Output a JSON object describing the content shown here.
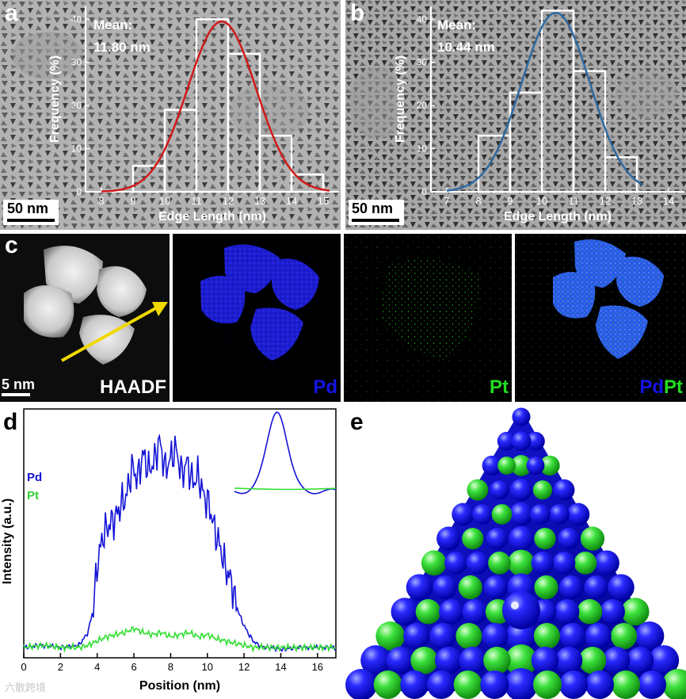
{
  "panels": {
    "a": {
      "label": "a",
      "mean_title": "Mean:",
      "mean_value": "11.80 nm",
      "scale_bar": "50 nm",
      "xlabel": "Edge Length (nm)",
      "ylabel": "Frequency (%)",
      "curve_color": "#d11a1a"
    },
    "b": {
      "label": "b",
      "mean_title": "Mean:",
      "mean_value": "10.44 nm",
      "scale_bar": "50 nm",
      "xlabel": "Edge Length (nm)",
      "ylabel": "Frequency (%)",
      "curve_color": "#2f6aa0"
    },
    "c": {
      "label": "c",
      "scale_bar": "5 nm",
      "haadf": "HAADF",
      "pd": "Pd",
      "pt": "Pt",
      "pdpt_pd": "Pd",
      "pdpt_pt": "Pt",
      "pd_color": "#1414e6",
      "pt_color": "#22dd22"
    },
    "d": {
      "label": "d",
      "xlabel": "Position (nm)",
      "ylabel": "Intensity (a.u.)",
      "legend_pd": "Pd",
      "legend_pt": "Pt"
    },
    "e": {
      "label": "e"
    }
  },
  "watermark": "六散跨境",
  "chart_data": [
    {
      "type": "bar",
      "panel": "a",
      "xlabel": "Edge Length (nm)",
      "ylabel": "Frequency (%)",
      "xlim": [
        7.5,
        15.5
      ],
      "ylim": [
        0,
        43
      ],
      "xticks": [
        8,
        9,
        10,
        11,
        12,
        13,
        14,
        15
      ],
      "yticks": [
        0,
        10,
        20,
        30,
        40
      ],
      "bins": [
        [
          9,
          10
        ],
        [
          10,
          11
        ],
        [
          11,
          12
        ],
        [
          12,
          13
        ],
        [
          13,
          14
        ],
        [
          14,
          15
        ]
      ],
      "values": [
        6,
        19,
        40,
        32,
        13,
        4
      ],
      "fit": {
        "mean": 11.8,
        "sigma": 1.08,
        "peak": 39.5
      },
      "annotation": "Mean: 11.80 nm"
    },
    {
      "type": "bar",
      "panel": "b",
      "xlabel": "Edge Length (nm)",
      "ylabel": "Frequency (%)",
      "xlim": [
        6.5,
        14.5
      ],
      "ylim": [
        0,
        43
      ],
      "xticks": [
        7,
        8,
        9,
        10,
        11,
        12,
        13,
        14
      ],
      "yticks": [
        0,
        10,
        20,
        30,
        40
      ],
      "bins": [
        [
          8,
          9
        ],
        [
          9,
          10
        ],
        [
          10,
          11
        ],
        [
          11,
          12
        ],
        [
          12,
          13
        ]
      ],
      "values": [
        13,
        23,
        42,
        28,
        8
      ],
      "fit": {
        "mean": 10.44,
        "sigma": 1.08,
        "peak": 41.5
      },
      "annotation": "Mean: 10.44 nm"
    },
    {
      "type": "line",
      "panel": "d",
      "xlabel": "Position (nm)",
      "ylabel": "Intensity (a.u.)",
      "xlim": [
        0,
        17
      ],
      "xticks": [
        0,
        2,
        4,
        6,
        8,
        10,
        12,
        14,
        16
      ],
      "series": [
        {
          "name": "Pd",
          "color": "#1414d6",
          "x": [
            0,
            1,
            2,
            3,
            3.5,
            3.8,
            4.0,
            4.3,
            4.6,
            5.0,
            5.3,
            5.6,
            5.9,
            6.2,
            6.5,
            6.8,
            7.1,
            7.4,
            7.7,
            8.0,
            8.3,
            8.6,
            8.9,
            9.2,
            9.5,
            9.8,
            10.1,
            10.4,
            10.7,
            11.0,
            11.3,
            11.6,
            11.9,
            12.2,
            12.5,
            12.8,
            13.1,
            13.5,
            14,
            15,
            16,
            17
          ],
          "y": [
            3,
            4,
            3,
            4,
            10,
            22,
            42,
            55,
            60,
            64,
            70,
            74,
            88,
            82,
            94,
            86,
            90,
            100,
            86,
            92,
            96,
            84,
            90,
            80,
            84,
            74,
            70,
            58,
            50,
            40,
            34,
            22,
            15,
            10,
            6,
            4,
            3,
            3,
            2,
            3,
            3,
            3
          ]
        },
        {
          "name": "Pt",
          "color": "#33e033",
          "x": [
            0,
            1,
            2,
            3,
            3.5,
            4.0,
            4.5,
            5.0,
            5.5,
            6.0,
            6.5,
            7.0,
            7.5,
            8.0,
            8.5,
            9.0,
            9.5,
            10.0,
            10.5,
            11.0,
            11.5,
            12.0,
            12.5,
            13.0,
            13.5,
            14,
            15,
            16,
            17
          ],
          "y": [
            3,
            4,
            3,
            3,
            4,
            6,
            8,
            9,
            10,
            12,
            10,
            9,
            10,
            8,
            9,
            10,
            8,
            9,
            7,
            6,
            5,
            4,
            3,
            3,
            3,
            3,
            3,
            3,
            3
          ]
        }
      ],
      "inset": {
        "series": [
          {
            "name": "Pd",
            "shape": "peak"
          },
          {
            "name": "Pt",
            "shape": "flat"
          }
        ]
      }
    }
  ]
}
